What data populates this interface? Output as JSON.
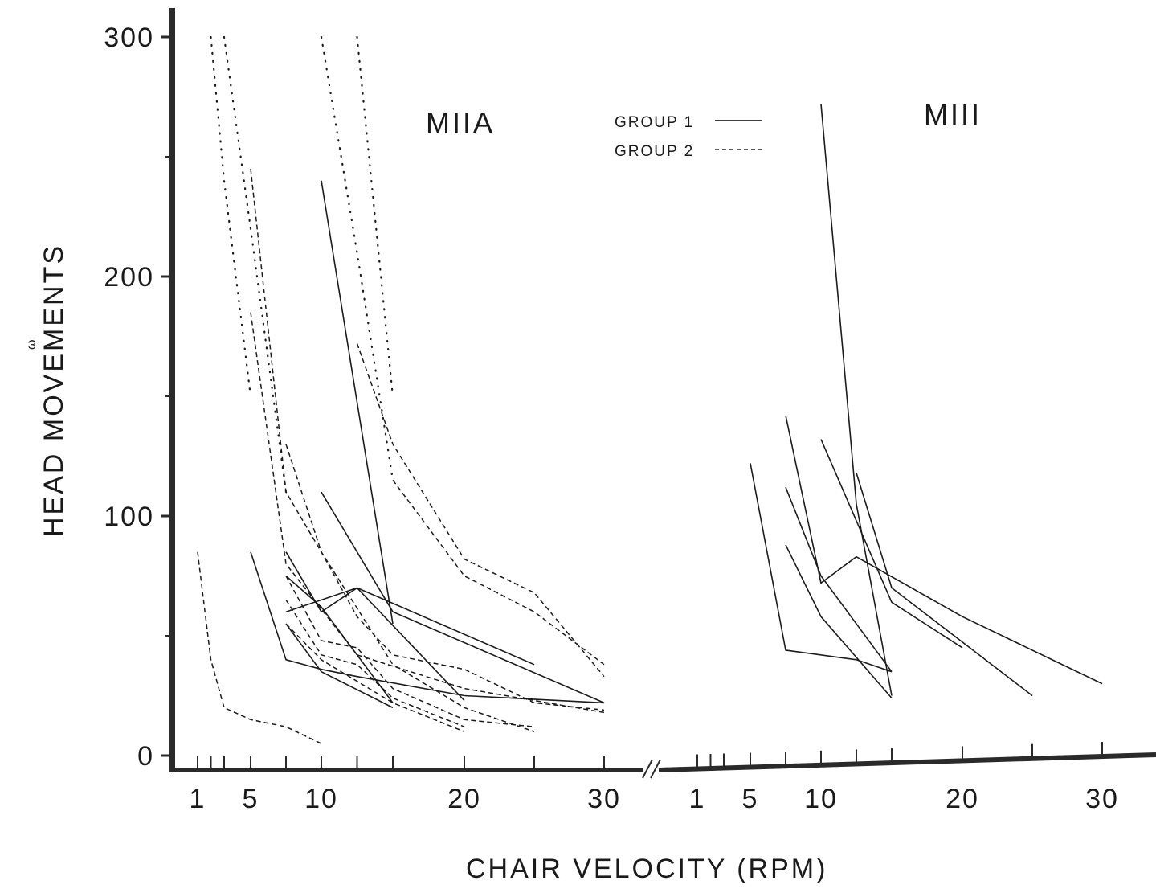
{
  "chart_data": {
    "type": "line",
    "xlabel": "CHAIR VELOCITY (RPM)",
    "ylabel": "HEAD MOVEMENTS",
    "ylabel_mark": "ω",
    "ylim": [
      0,
      300
    ],
    "yticks": [
      0,
      100,
      200,
      300
    ],
    "ytick_labels": [
      "0",
      "100",
      "200",
      "300"
    ],
    "grid": false,
    "legend": {
      "placement": "top-center",
      "entries": [
        {
          "label": "GROUP 1",
          "style": "solid"
        },
        {
          "label": "GROUP 2",
          "style": "dashed"
        }
      ]
    },
    "axis_break": "//",
    "panels": [
      {
        "title": "MIIA",
        "xticks": [
          1,
          2,
          3,
          5,
          7.5,
          10,
          12.5,
          15,
          20,
          25,
          30
        ],
        "xtick_labels": [
          "1",
          "5",
          "10",
          "20",
          "30"
        ],
        "xtick_label_values": [
          1,
          5,
          10,
          20,
          30
        ],
        "series": [
          {
            "style": "solid",
            "x": [
              10,
              15
            ],
            "y": [
              240,
              55
            ]
          },
          {
            "style": "solid",
            "x": [
              10,
              15,
              30
            ],
            "y": [
              110,
              60,
              22
            ]
          },
          {
            "style": "solid",
            "x": [
              5,
              7.5,
              10,
              12.5,
              20,
              30
            ],
            "y": [
              85,
              40,
              36,
              33,
              25,
              22
            ]
          },
          {
            "style": "solid",
            "x": [
              7.5,
              10,
              12.5,
              25
            ],
            "y": [
              85,
              60,
              70,
              38
            ]
          },
          {
            "style": "solid",
            "x": [
              7.5,
              10,
              15
            ],
            "y": [
              75,
              62,
              22
            ]
          },
          {
            "style": "solid",
            "x": [
              7.5,
              12.5,
              20
            ],
            "y": [
              60,
              70,
              23
            ]
          },
          {
            "style": "solid",
            "x": [
              7.5,
              10,
              15
            ],
            "y": [
              55,
              35,
              20
            ]
          },
          {
            "style": "dashed",
            "x": [
              1,
              2,
              3,
              5,
              7.5,
              10
            ],
            "y": [
              85,
              40,
              20,
              15,
              12,
              5
            ]
          },
          {
            "style": "dashed",
            "x": [
              5,
              7.5,
              12.5,
              20,
              30
            ],
            "y": [
              185,
              80,
              42,
              28,
              18
            ]
          },
          {
            "style": "dashed",
            "x": [
              5,
              7.5,
              10,
              12.5,
              15,
              20,
              25,
              30
            ],
            "y": [
              245,
              110,
              85,
              58,
              42,
              36,
              22,
              19
            ]
          },
          {
            "style": "dashed",
            "x": [
              7.5,
              10,
              15,
              20,
              25
            ],
            "y": [
              130,
              85,
              38,
              20,
              10
            ]
          },
          {
            "style": "dashed",
            "x": [
              7.5,
              10,
              12.5,
              15,
              20,
              25
            ],
            "y": [
              75,
              48,
              45,
              28,
              15,
              12
            ]
          },
          {
            "style": "dashed",
            "x": [
              7.5,
              10,
              12.5,
              15,
              20
            ],
            "y": [
              65,
              42,
              38,
              24,
              12
            ]
          },
          {
            "style": "dashed",
            "x": [
              7.5,
              10,
              15,
              20
            ],
            "y": [
              55,
              40,
              22,
              10
            ]
          },
          {
            "style": "dashed",
            "x": [
              12.5,
              15,
              20,
              25,
              30
            ],
            "y": [
              172,
              130,
              82,
              68,
              33
            ]
          },
          {
            "style": "dashed",
            "x": [
              15,
              20,
              25,
              30
            ],
            "y": [
              115,
              75,
              60,
              38
            ]
          },
          {
            "style": "dotted",
            "x": [
              2,
              3,
              5
            ],
            "y": [
              300,
              240,
              150
            ]
          },
          {
            "style": "dotted",
            "x": [
              3,
              5,
              7.5
            ],
            "y": [
              300,
              220,
              110
            ]
          },
          {
            "style": "dotted",
            "x": [
              10,
              12.5,
              15
            ],
            "y": [
              300,
              210,
              115
            ]
          },
          {
            "style": "dotted",
            "x": [
              12.5,
              15
            ],
            "y": [
              300,
              150
            ]
          }
        ]
      },
      {
        "title": "MIII",
        "xticks": [
          1,
          2,
          3,
          5,
          7.5,
          10,
          12.5,
          15,
          20,
          25,
          30
        ],
        "xtick_labels": [
          "1",
          "5",
          "10",
          "20",
          "30"
        ],
        "xtick_label_values": [
          1,
          5,
          10,
          20,
          30
        ],
        "series": [
          {
            "style": "solid",
            "x": [
              10,
              12.5,
              15
            ],
            "y": [
              272,
              105,
              25
            ]
          },
          {
            "style": "solid",
            "x": [
              5,
              7.5,
              12.5,
              15
            ],
            "y": [
              122,
              44,
              40,
              35
            ]
          },
          {
            "style": "solid",
            "x": [
              7.5,
              10,
              12.5,
              20,
              30
            ],
            "y": [
              142,
              72,
              83,
              58,
              30
            ]
          },
          {
            "style": "solid",
            "x": [
              7.5,
              10,
              15
            ],
            "y": [
              112,
              75,
              35
            ]
          },
          {
            "style": "solid",
            "x": [
              7.5,
              10,
              15
            ],
            "y": [
              88,
              58,
              24
            ]
          },
          {
            "style": "solid",
            "x": [
              10,
              15,
              20
            ],
            "y": [
              132,
              64,
              45
            ]
          },
          {
            "style": "solid",
            "x": [
              12.5,
              15,
              25
            ],
            "y": [
              118,
              70,
              25
            ]
          }
        ]
      }
    ]
  }
}
